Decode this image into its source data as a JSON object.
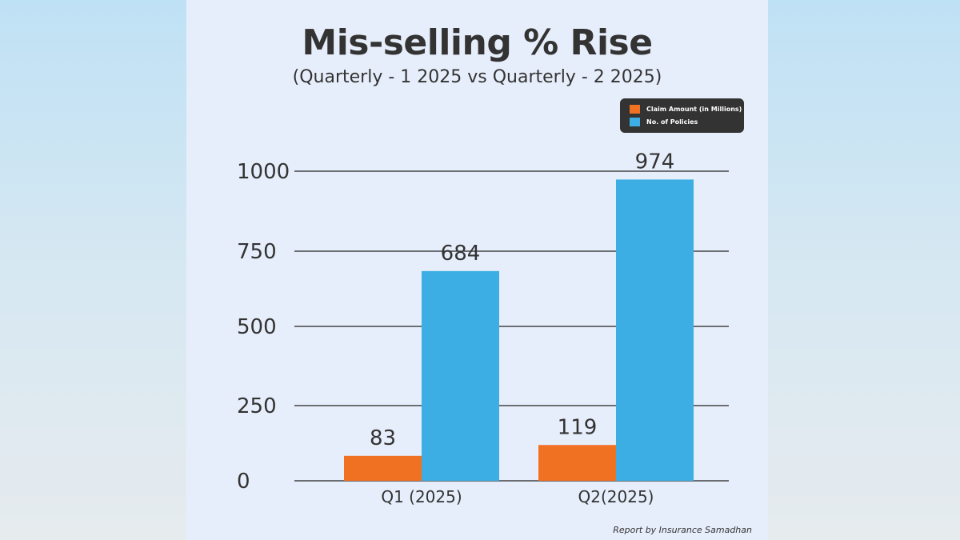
{
  "chart_data": {
    "type": "bar",
    "title": "Mis-selling % Rise",
    "subtitle": "(Quarterly - 1 2025 vs Quarterly - 2 2025)",
    "categories": [
      "Q1 (2025)",
      "Q2(2025)"
    ],
    "series": [
      {
        "name": "Claim Amount (in Millions)",
        "values": [
          83,
          119
        ],
        "color": "#f07122"
      },
      {
        "name": "No. of Policies",
        "values": [
          684,
          974
        ],
        "color": "#3daee3"
      }
    ],
    "yticks": [
      0,
      250,
      500,
      750,
      1000
    ],
    "ylim": [
      0,
      1000
    ],
    "grid": true,
    "legend_position": "top-right",
    "data_labels": true
  },
  "footer": "Report by Insurance Samadhan"
}
